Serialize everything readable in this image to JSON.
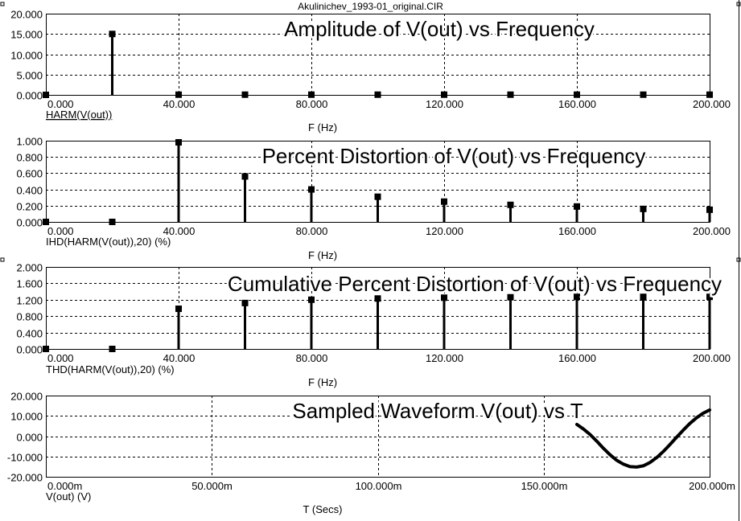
{
  "window": {
    "title": "Akulinichev_1993-01_original.CIR"
  },
  "chart_data": [
    {
      "type": "bar",
      "title": "Amplitude of V(out) vs Frequency",
      "trace_label": "HARM(V(out))",
      "xlabel": "F (Hz)",
      "xlim": [
        0,
        200
      ],
      "ylim": [
        0,
        20
      ],
      "xticks": [
        "0.000",
        "40.000",
        "80.000",
        "120.000",
        "160.000",
        "200.000"
      ],
      "yticks": [
        "0.000",
        "5.000",
        "10.000",
        "15.000",
        "20.000"
      ],
      "x": [
        0,
        20,
        40,
        60,
        80,
        100,
        120,
        140,
        160,
        180,
        200
      ],
      "values": [
        0,
        15.0,
        0.05,
        0.05,
        0.05,
        0.05,
        0.05,
        0.05,
        0.05,
        0.05,
        0.05
      ],
      "grid": true
    },
    {
      "type": "bar",
      "title": "Percent Distortion of V(out) vs Frequency",
      "trace_label": "IHD(HARM(V(out)),20) (%)",
      "xlabel": "F (Hz)",
      "xlim": [
        0,
        200
      ],
      "ylim": [
        0,
        1
      ],
      "xticks": [
        "0.000",
        "40.000",
        "80.000",
        "120.000",
        "160.000",
        "200.000"
      ],
      "yticks": [
        "0.000",
        "0.200",
        "0.400",
        "0.600",
        "0.800",
        "1.000"
      ],
      "x": [
        0,
        20,
        40,
        60,
        80,
        100,
        120,
        140,
        160,
        180,
        200
      ],
      "values": [
        0,
        0,
        0.98,
        0.56,
        0.4,
        0.31,
        0.25,
        0.21,
        0.19,
        0.16,
        0.15
      ],
      "grid": true
    },
    {
      "type": "bar",
      "title": "Cumulative Percent Distortion of V(out) vs Frequency",
      "trace_label": "THD(HARM(V(out)),20) (%)",
      "xlabel": "F (Hz)",
      "xlim": [
        0,
        200
      ],
      "ylim": [
        0,
        2
      ],
      "xticks": [
        "0.000",
        "40.000",
        "80.000",
        "120.000",
        "160.000",
        "200.000"
      ],
      "yticks": [
        "0.000",
        "0.400",
        "0.800",
        "1.200",
        "1.600",
        "2.000"
      ],
      "x": [
        0,
        20,
        40,
        60,
        80,
        100,
        120,
        140,
        160,
        180,
        200
      ],
      "values": [
        0,
        0,
        0.98,
        1.12,
        1.2,
        1.23,
        1.25,
        1.26,
        1.27,
        1.27,
        1.27
      ],
      "grid": true
    },
    {
      "type": "line",
      "title": "Sampled Waveform  V(out) vs T",
      "trace_label": "V(out) (V)",
      "xlabel": "T (Secs)",
      "xlim": [
        0,
        200
      ],
      "ylim": [
        -20,
        20
      ],
      "xticks": [
        "0.000m",
        "50.000m",
        "100.000m",
        "150.000m",
        "200.000m"
      ],
      "yticks": [
        "-20.000",
        "-10.000",
        "0.000",
        "10.000",
        "20.000"
      ],
      "x": [
        160,
        162,
        164,
        166,
        168,
        170,
        172,
        174,
        176,
        178,
        180,
        182,
        184,
        186,
        188,
        190,
        192,
        194,
        196,
        198,
        200
      ],
      "values": [
        5.8,
        3.5,
        0.8,
        -2.5,
        -6.0,
        -9.2,
        -11.9,
        -13.8,
        -15.0,
        -15.2,
        -14.6,
        -13.0,
        -10.6,
        -7.6,
        -4.2,
        -0.6,
        2.9,
        6.2,
        9.0,
        11.3,
        12.9
      ],
      "grid": true
    }
  ]
}
